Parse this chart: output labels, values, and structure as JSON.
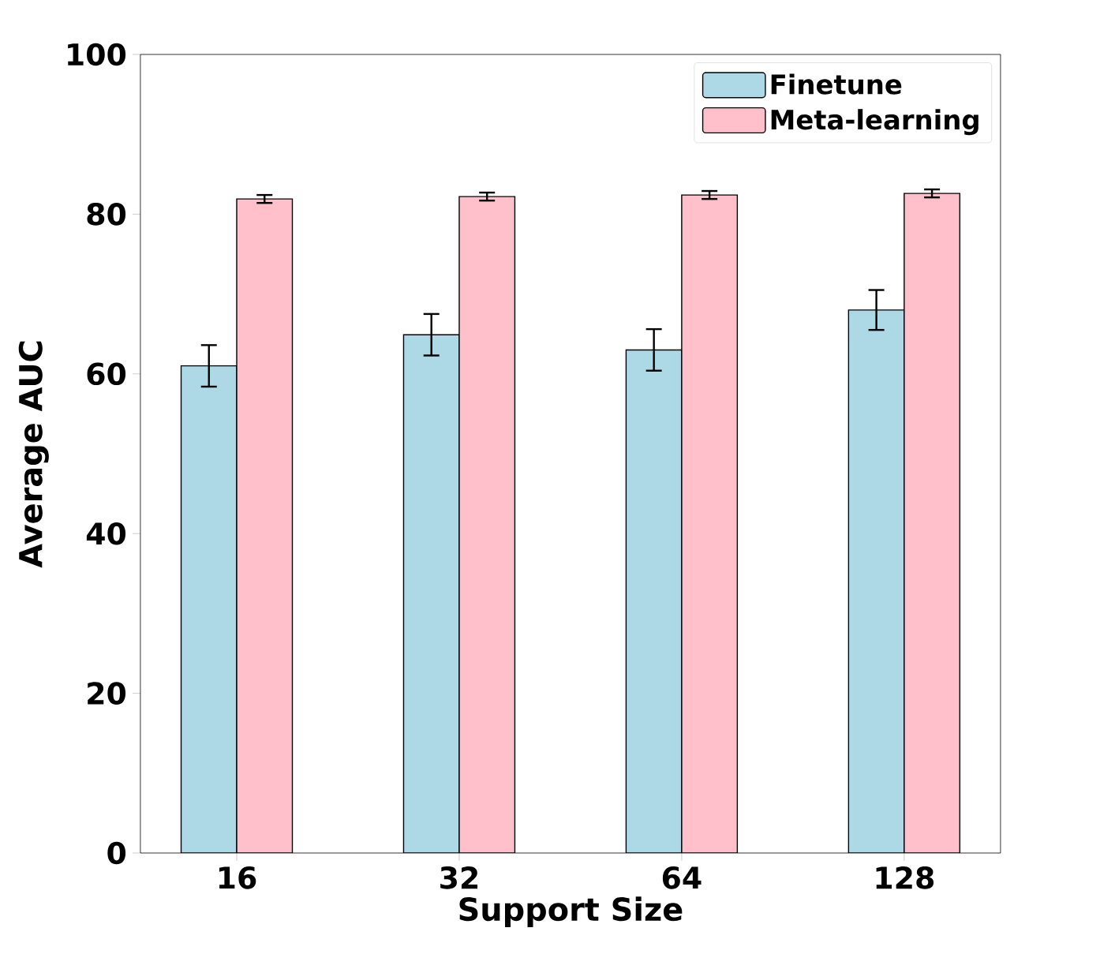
{
  "chart_data": {
    "type": "bar",
    "xlabel": "Support Size",
    "ylabel": "Average AUC",
    "categories": [
      "16",
      "32",
      "64",
      "128"
    ],
    "series": [
      {
        "name": "Finetune",
        "color": "#add8e6",
        "values": [
          61.0,
          64.9,
          63.0,
          68.0
        ],
        "errors": [
          2.6,
          2.6,
          2.6,
          2.5
        ]
      },
      {
        "name": "Meta-learning",
        "color": "#ffc0cb",
        "values": [
          81.9,
          82.2,
          82.4,
          82.6
        ],
        "errors": [
          0.5,
          0.5,
          0.5,
          0.5
        ]
      }
    ],
    "ylim": [
      0,
      100
    ],
    "yticks": [
      0,
      20,
      40,
      60,
      80,
      100
    ],
    "legend": "top right"
  }
}
